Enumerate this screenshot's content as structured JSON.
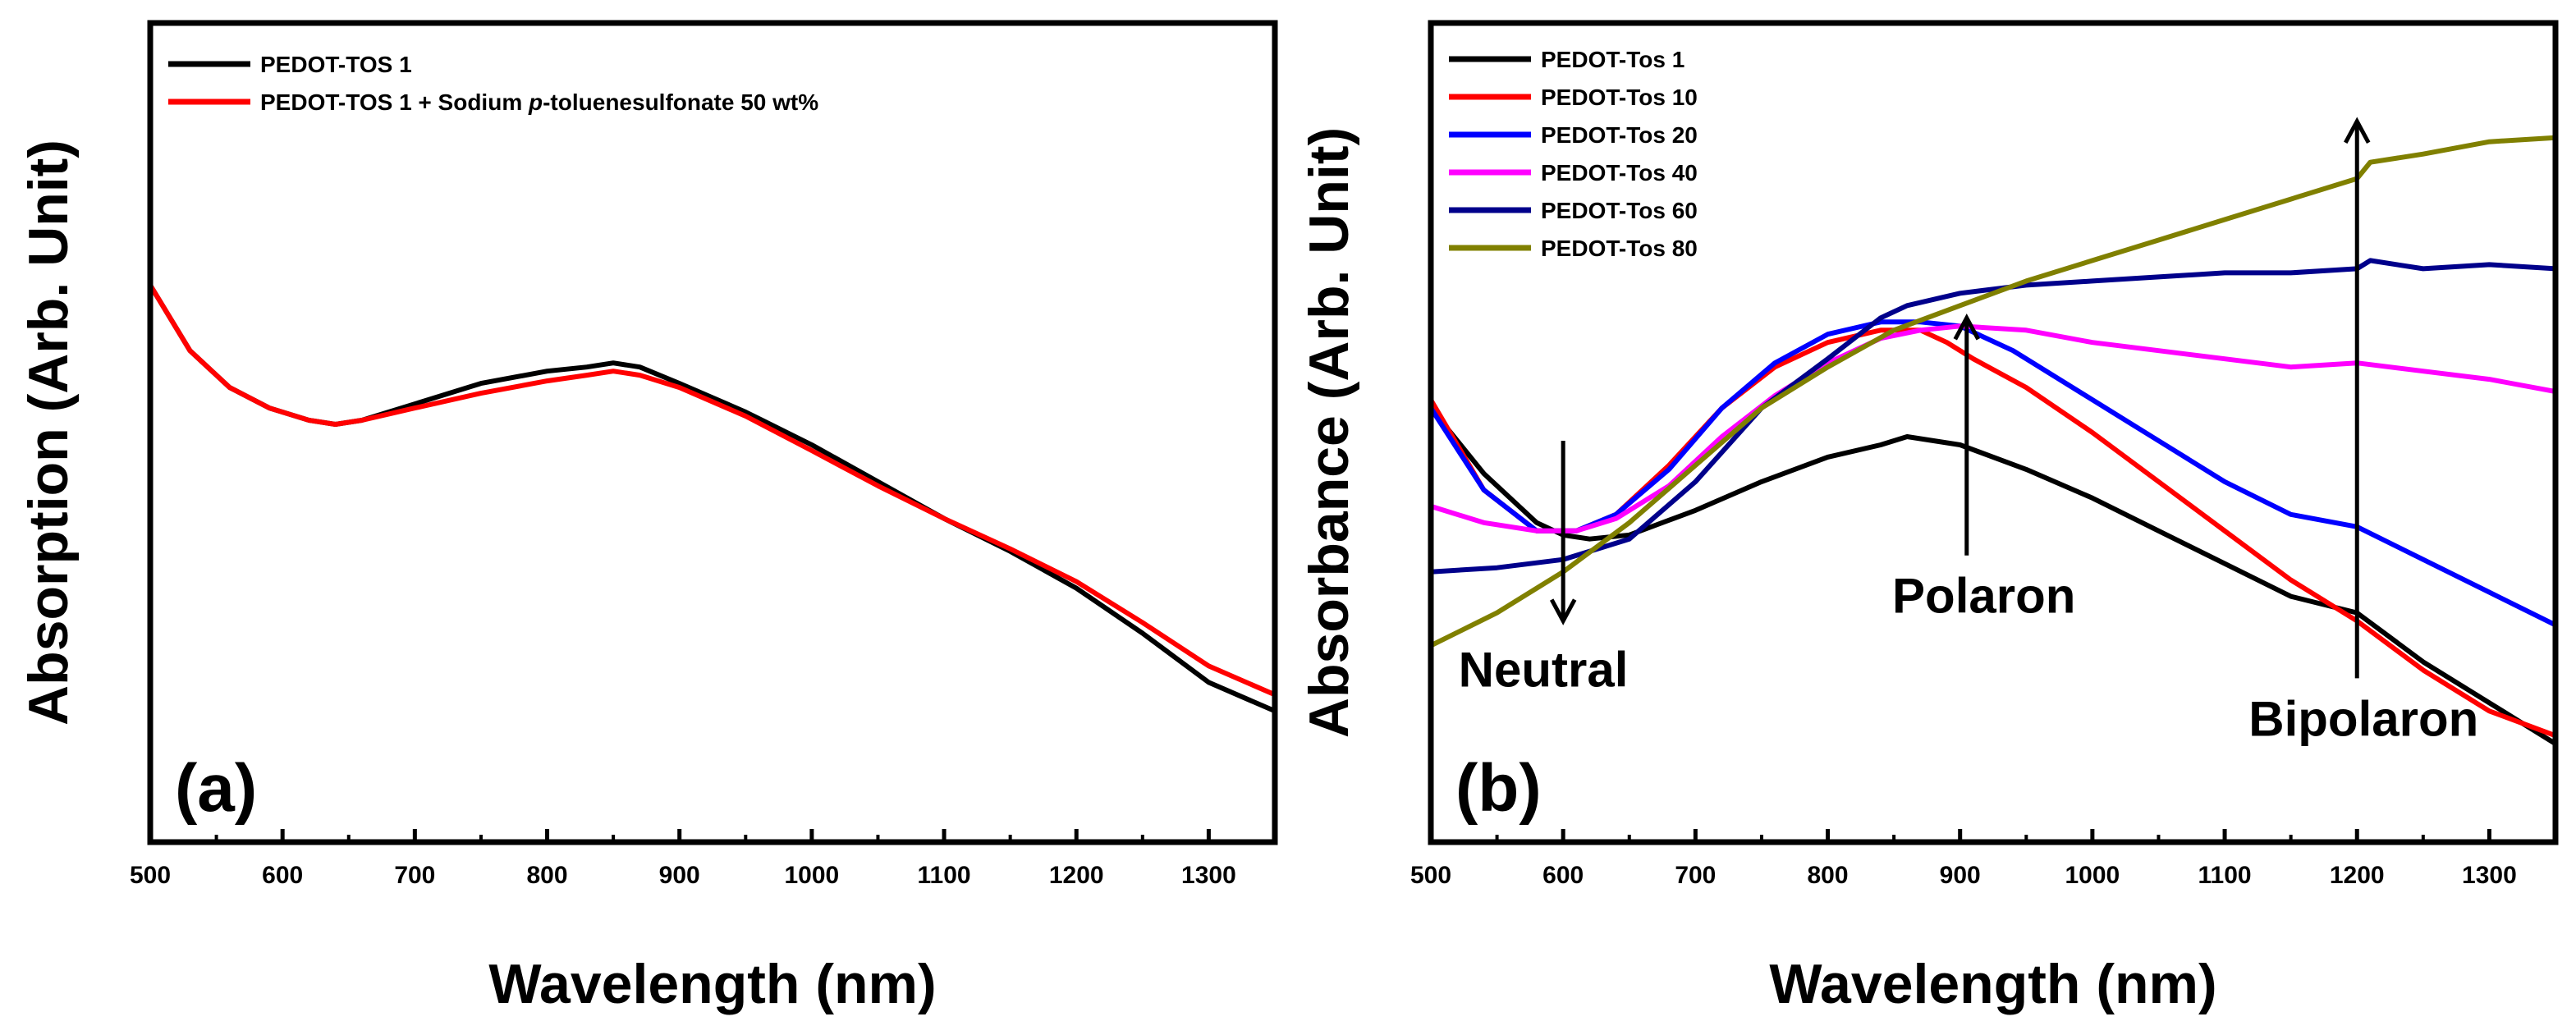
{
  "chart_data": [
    {
      "type": "line",
      "panel_label": "(a)",
      "xlabel": "Wavelength (nm)",
      "ylabel": "Absorption (Arb. Unit)",
      "xlim": [
        500,
        1350
      ],
      "ylim": [
        0,
        1
      ],
      "y_ticks_shown": false,
      "x_ticks": [
        "500",
        "600",
        "700",
        "800",
        "900",
        "1000",
        "1100",
        "1200",
        "1300"
      ],
      "legend": {
        "position": "top-left",
        "entries": [
          "PEDOT-TOS 1",
          "PEDOT-TOS 1 + Sodium p-toluenesulfonate 50 wt%"
        ]
      },
      "legend_rich": {
        "prefix": "PEDOT-TOS 1 + Sodium ",
        "italic": "p",
        "suffix": "-toluenesulfonate 50 wt%"
      },
      "series": [
        {
          "name": "PEDOT-TOS 1",
          "color": "#000000",
          "x": [
            500,
            530,
            560,
            590,
            620,
            640,
            660,
            700,
            750,
            800,
            830,
            850,
            870,
            900,
            950,
            1000,
            1050,
            1100,
            1150,
            1200,
            1250,
            1300,
            1350
          ],
          "y": [
            0.68,
            0.6,
            0.555,
            0.53,
            0.515,
            0.51,
            0.515,
            0.535,
            0.56,
            0.575,
            0.58,
            0.585,
            0.58,
            0.56,
            0.525,
            0.485,
            0.44,
            0.395,
            0.355,
            0.31,
            0.255,
            0.195,
            0.16
          ]
        },
        {
          "name": "PEDOT-TOS 1 + Sodium p-toluenesulfonate 50 wt%",
          "color": "#ff0000",
          "x": [
            500,
            530,
            560,
            590,
            620,
            640,
            660,
            700,
            750,
            800,
            830,
            850,
            870,
            900,
            950,
            1000,
            1050,
            1100,
            1150,
            1200,
            1250,
            1300,
            1350
          ],
          "y": [
            0.68,
            0.6,
            0.555,
            0.53,
            0.515,
            0.51,
            0.515,
            0.53,
            0.548,
            0.563,
            0.57,
            0.575,
            0.57,
            0.555,
            0.52,
            0.478,
            0.435,
            0.395,
            0.358,
            0.318,
            0.268,
            0.215,
            0.18
          ]
        }
      ]
    },
    {
      "type": "line",
      "panel_label": "(b)",
      "xlabel": "Wavelength (nm)",
      "ylabel": "Absorbance (Arb. Unit)",
      "xlim": [
        500,
        1350
      ],
      "ylim": [
        0,
        1
      ],
      "y_ticks_shown": false,
      "x_ticks": [
        "500",
        "600",
        "700",
        "800",
        "900",
        "1000",
        "1100",
        "1200",
        "1300"
      ],
      "legend": {
        "position": "top-left",
        "entries": [
          "PEDOT-Tos 1",
          "PEDOT-Tos 10",
          "PEDOT-Tos 20",
          "PEDOT-Tos 40",
          "PEDOT-Tos 60",
          "PEDOT-Tos 80"
        ]
      },
      "annotations": [
        {
          "text": "Neutral",
          "arrow_x": 600,
          "arrow_from_y": 0.49,
          "arrow_to_y": 0.27,
          "text_x": 585,
          "text_y": 0.19
        },
        {
          "text": "Polaron",
          "arrow_x": 905,
          "arrow_from_y": 0.35,
          "arrow_to_y": 0.64,
          "text_x": 918,
          "text_y": 0.28
        },
        {
          "text": "Bipolaron",
          "arrow_x": 1200,
          "arrow_from_y": 0.2,
          "arrow_to_y": 0.88,
          "text_x": 1205,
          "text_y": 0.13
        }
      ],
      "series": [
        {
          "name": "PEDOT-Tos 1",
          "color": "#000000",
          "x": [
            500,
            540,
            580,
            600,
            620,
            650,
            700,
            750,
            800,
            840,
            860,
            880,
            900,
            950,
            1000,
            1050,
            1100,
            1150,
            1200,
            1250,
            1300,
            1350
          ],
          "y": [
            0.53,
            0.45,
            0.39,
            0.375,
            0.37,
            0.375,
            0.405,
            0.44,
            0.47,
            0.485,
            0.495,
            0.49,
            0.485,
            0.455,
            0.42,
            0.38,
            0.34,
            0.3,
            0.28,
            0.22,
            0.17,
            0.12
          ]
        },
        {
          "name": "PEDOT-Tos 10",
          "color": "#ff0000",
          "x": [
            500,
            540,
            580,
            610,
            640,
            680,
            720,
            760,
            800,
            840,
            870,
            890,
            910,
            950,
            1000,
            1050,
            1100,
            1150,
            1200,
            1250,
            1300,
            1350
          ],
          "y": [
            0.54,
            0.43,
            0.38,
            0.38,
            0.4,
            0.46,
            0.53,
            0.58,
            0.61,
            0.625,
            0.625,
            0.61,
            0.59,
            0.555,
            0.5,
            0.44,
            0.38,
            0.32,
            0.27,
            0.21,
            0.16,
            0.13
          ]
        },
        {
          "name": "PEDOT-Tos 20",
          "color": "#0000ff",
          "x": [
            500,
            540,
            580,
            610,
            640,
            680,
            720,
            760,
            800,
            840,
            870,
            900,
            940,
            1000,
            1050,
            1100,
            1150,
            1200,
            1250,
            1300,
            1350
          ],
          "y": [
            0.53,
            0.43,
            0.38,
            0.38,
            0.4,
            0.455,
            0.53,
            0.585,
            0.62,
            0.635,
            0.635,
            0.63,
            0.6,
            0.54,
            0.49,
            0.44,
            0.4,
            0.385,
            0.345,
            0.305,
            0.265
          ]
        },
        {
          "name": "PEDOT-Tos 40",
          "color": "#ff00ff",
          "x": [
            500,
            540,
            580,
            610,
            640,
            680,
            720,
            760,
            800,
            840,
            870,
            900,
            950,
            1000,
            1050,
            1100,
            1150,
            1200,
            1250,
            1300,
            1350
          ],
          "y": [
            0.41,
            0.39,
            0.38,
            0.38,
            0.395,
            0.435,
            0.495,
            0.545,
            0.585,
            0.615,
            0.625,
            0.63,
            0.625,
            0.61,
            0.6,
            0.59,
            0.58,
            0.585,
            0.575,
            0.565,
            0.55
          ]
        },
        {
          "name": "PEDOT-Tos 60",
          "color": "#00008b",
          "x": [
            500,
            550,
            600,
            650,
            700,
            750,
            800,
            840,
            860,
            900,
            950,
            1000,
            1050,
            1100,
            1150,
            1200,
            1210,
            1250,
            1300,
            1350
          ],
          "y": [
            0.33,
            0.335,
            0.345,
            0.37,
            0.44,
            0.53,
            0.59,
            0.64,
            0.655,
            0.67,
            0.68,
            0.685,
            0.69,
            0.695,
            0.695,
            0.7,
            0.71,
            0.7,
            0.705,
            0.7
          ]
        },
        {
          "name": "PEDOT-Tos 80",
          "color": "#808000",
          "x": [
            500,
            550,
            600,
            650,
            700,
            750,
            800,
            850,
            900,
            950,
            1000,
            1050,
            1100,
            1150,
            1200,
            1210,
            1250,
            1300,
            1350
          ],
          "y": [
            0.24,
            0.28,
            0.33,
            0.39,
            0.46,
            0.53,
            0.58,
            0.625,
            0.655,
            0.685,
            0.71,
            0.735,
            0.76,
            0.785,
            0.81,
            0.83,
            0.84,
            0.855,
            0.86
          ]
        }
      ]
    }
  ]
}
